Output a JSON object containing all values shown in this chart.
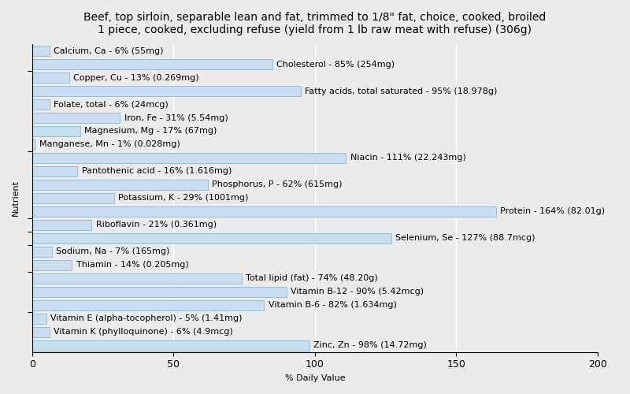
{
  "title": "Beef, top sirloin, separable lean and fat, trimmed to 1/8\" fat, choice, cooked, broiled\n1 piece, cooked, excluding refuse (yield from 1 lb raw meat with refuse) (306g)",
  "xlabel": "% Daily Value",
  "ylabel": "Nutrient",
  "nutrients": [
    "Calcium, Ca - 6% (55mg)",
    "Cholesterol - 85% (254mg)",
    "Copper, Cu - 13% (0.269mg)",
    "Fatty acids, total saturated - 95% (18.978g)",
    "Folate, total - 6% (24mcg)",
    "Iron, Fe - 31% (5.54mg)",
    "Magnesium, Mg - 17% (67mg)",
    "Manganese, Mn - 1% (0.028mg)",
    "Niacin - 111% (22.243mg)",
    "Pantothenic acid - 16% (1.616mg)",
    "Phosphorus, P - 62% (615mg)",
    "Potassium, K - 29% (1001mg)",
    "Protein - 164% (82.01g)",
    "Riboflavin - 21% (0.361mg)",
    "Selenium, Se - 127% (88.7mcg)",
    "Sodium, Na - 7% (165mg)",
    "Thiamin - 14% (0.205mg)",
    "Total lipid (fat) - 74% (48.20g)",
    "Vitamin B-12 - 90% (5.42mcg)",
    "Vitamin B-6 - 82% (1.634mg)",
    "Vitamin E (alpha-tocopherol) - 5% (1.41mg)",
    "Vitamin K (phylloquinone) - 6% (4.9mcg)",
    "Zinc, Zn - 98% (14.72mg)"
  ],
  "values": [
    6,
    85,
    13,
    95,
    6,
    31,
    17,
    1,
    111,
    16,
    62,
    29,
    164,
    21,
    127,
    7,
    14,
    74,
    90,
    82,
    5,
    6,
    98
  ],
  "bar_color": "#c8ddf0",
  "bar_edge_color": "#7aafd4",
  "background_color": "#ebebeb",
  "xlim": [
    0,
    200
  ],
  "xticks": [
    0,
    50,
    100,
    150,
    200
  ],
  "title_fontsize": 10,
  "label_fontsize": 8,
  "tick_fontsize": 9,
  "ytick_positions": [
    1.5,
    7.5,
    12.5,
    15.5,
    19.5
  ],
  "bar_height": 0.75
}
